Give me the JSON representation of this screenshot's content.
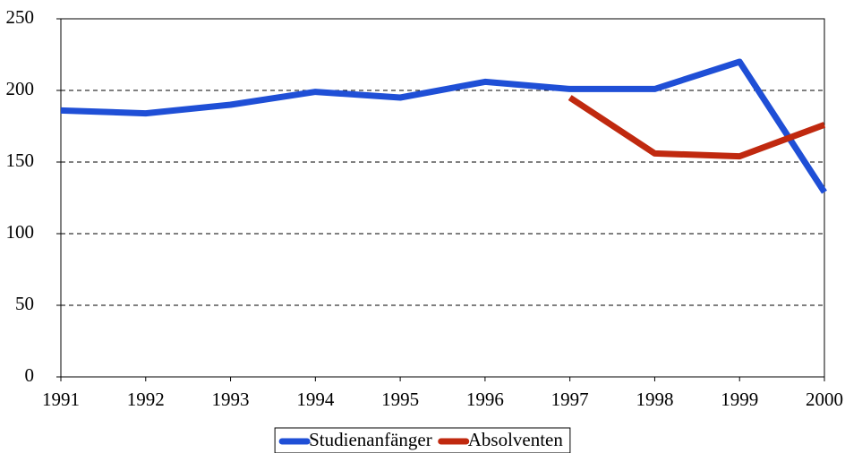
{
  "chart_data": {
    "type": "line",
    "x": [
      1991,
      1992,
      1993,
      1994,
      1995,
      1996,
      1997,
      1998,
      1999,
      2000
    ],
    "series": [
      {
        "name": "Studienanfänger",
        "color": "#1f4fd6",
        "values": [
          186,
          184,
          190,
          199,
          195,
          206,
          201,
          201,
          220,
          129
        ]
      },
      {
        "name": "Absolventen",
        "color": "#c0290f",
        "values": [
          null,
          null,
          null,
          null,
          null,
          null,
          195,
          156,
          154,
          176
        ]
      }
    ],
    "xlim": [
      1991,
      2000
    ],
    "xticks": [
      1991,
      1992,
      1993,
      1994,
      1995,
      1996,
      1997,
      1998,
      1999,
      2000
    ],
    "ylim": [
      0,
      250
    ],
    "yticks": [
      0,
      50,
      100,
      150,
      200,
      250
    ],
    "grid": true,
    "legend": "bottom"
  }
}
